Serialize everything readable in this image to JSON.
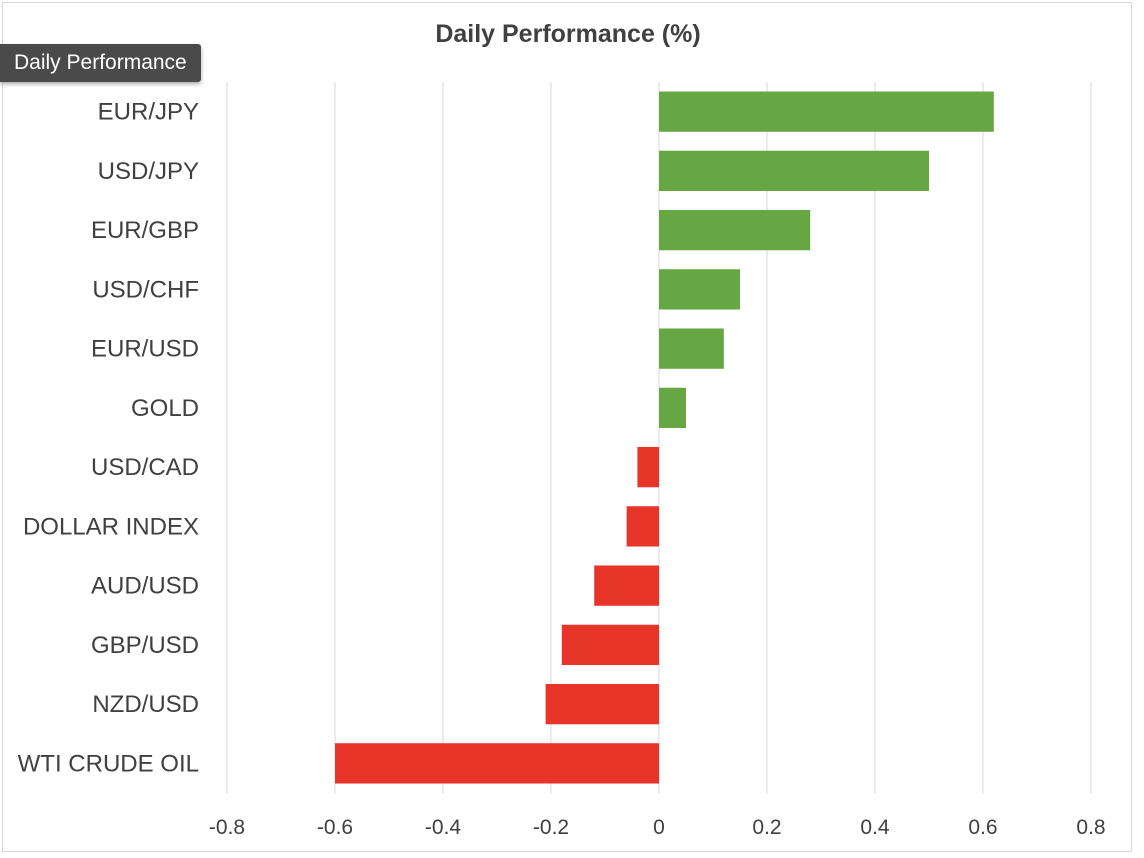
{
  "tooltip": {
    "label": "Daily Performance"
  },
  "chart_data": {
    "type": "bar",
    "orientation": "horizontal",
    "title": "Daily Performance (%)",
    "xlabel": "",
    "ylabel": "",
    "xlim": [
      -0.8,
      0.8
    ],
    "x_ticks": [
      "-0.8",
      "-0.6",
      "-0.4",
      "-0.2",
      "0",
      "0.2",
      "0.4",
      "0.6",
      "0.8"
    ],
    "grid": "vertical",
    "legend": "none",
    "categories": [
      "EUR/JPY",
      "USD/JPY",
      "EUR/GBP",
      "USD/CHF",
      "EUR/USD",
      "GOLD",
      "USD/CAD",
      "DOLLAR INDEX",
      "AUD/USD",
      "GBP/USD",
      "NZD/USD",
      "WTI CRUDE OIL"
    ],
    "values": [
      0.62,
      0.5,
      0.28,
      0.15,
      0.12,
      0.05,
      -0.04,
      -0.06,
      -0.12,
      -0.18,
      -0.21,
      -0.6
    ],
    "colors": {
      "positive": "#66a744",
      "negative": "#e8352a",
      "grid": "#d9d9d9",
      "text": "#404040"
    }
  }
}
